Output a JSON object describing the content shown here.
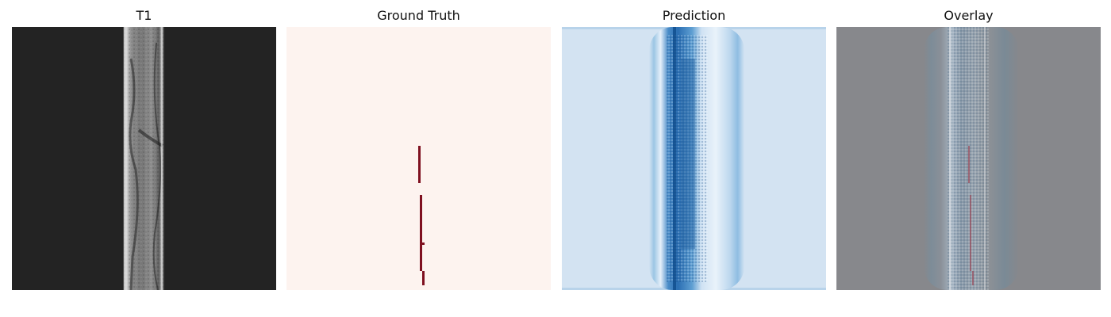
{
  "panels": [
    {
      "title": "T1"
    },
    {
      "title": "Ground Truth"
    },
    {
      "title": "Prediction"
    },
    {
      "title": "Overlay"
    }
  ],
  "colors": {
    "t1_background": "#232323",
    "ground_truth_background": "#fdf3ef",
    "ground_truth_lesion": "#7f1020",
    "prediction_background": "#d3e3f2",
    "prediction_dark": "#1f5d9e",
    "overlay_background": "#87888c"
  }
}
